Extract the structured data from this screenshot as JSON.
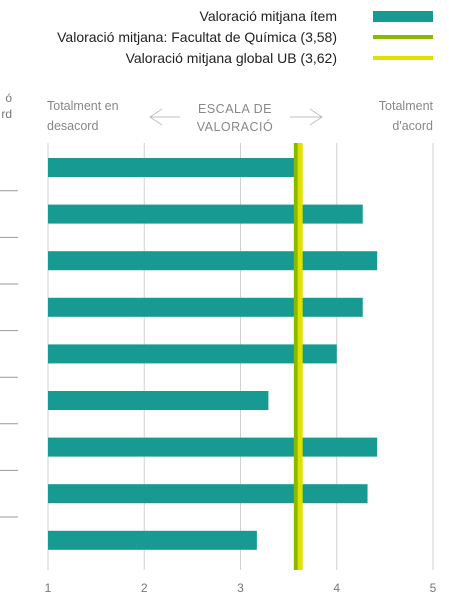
{
  "chart_data": {
    "type": "bar",
    "orientation": "horizontal",
    "categories": [
      "",
      "",
      "",
      "",
      "",
      "",
      "",
      "",
      ""
    ],
    "values": [
      3.58,
      4.27,
      4.42,
      4.27,
      4.0,
      3.29,
      4.42,
      4.32,
      3.17
    ],
    "xlim": [
      1,
      5
    ],
    "xticks": [
      "1",
      "2",
      "3",
      "4",
      "5"
    ],
    "grid": true,
    "legend_position": "top-right",
    "colors": {
      "bar": "#179a91",
      "faculty_line": "#8ab800",
      "global_line": "#dfe200",
      "grid": "#d0d0d0",
      "axis_text": "#777777"
    },
    "reference_lines": [
      {
        "name": "Valoració mitjana: Facultat de Química (3,58)",
        "value": 3.58
      },
      {
        "name": "Valoració mitjana global UB (3,62)",
        "value": 3.62
      }
    ]
  },
  "legend": {
    "bar_label": "Valoració mitjana ítem",
    "faculty_label": "Valoració mitjana: Facultat de Química (3,58)",
    "global_label": "Valoració mitjana global UB (3,62)"
  },
  "scale": {
    "left_line1": "Totalment en",
    "left_line2": "desacord",
    "center_line1": "ESCALA DE",
    "center_line2": "VALORACIÓ",
    "right_line1": "Totalment",
    "right_line2": "d'acord"
  },
  "cut_text": {
    "line1": "ó",
    "line2": "rd"
  }
}
